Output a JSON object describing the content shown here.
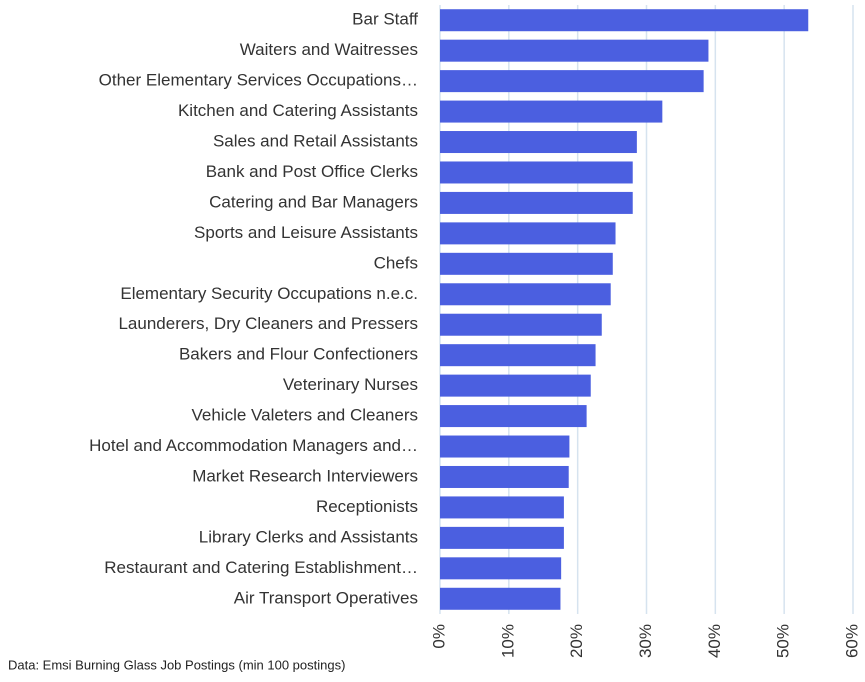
{
  "chart_data": {
    "type": "barh",
    "note": "Data: Emsi Burning Glass Job Postings (min 100 postings)",
    "categories": [
      "Bar Staff",
      "Waiters and Waitresses",
      "Other Elementary Services Occupations…",
      "Kitchen and Catering Assistants",
      "Sales and Retail Assistants",
      "Bank and Post Office Clerks",
      "Catering and Bar Managers",
      "Sports and Leisure Assistants",
      "Chefs",
      "Elementary Security Occupations n.e.c.",
      "Launderers, Dry Cleaners and Pressers",
      "Bakers and Flour Confectioners",
      "Veterinary Nurses",
      "Vehicle Valeters and Cleaners",
      "Hotel and Accommodation Managers and…",
      "Market Research Interviewers",
      "Receptionists",
      "Library Clerks and Assistants",
      "Restaurant and Catering Establishment…",
      "Air Transport Operatives"
    ],
    "values": [
      53.5,
      39.0,
      38.3,
      32.3,
      28.6,
      28.0,
      28.0,
      25.5,
      25.1,
      24.8,
      23.5,
      22.6,
      21.9,
      21.3,
      18.8,
      18.7,
      18.0,
      18.0,
      17.6,
      17.5
    ],
    "color": "#4b5fe0",
    "xlim": [
      0,
      60
    ],
    "xticks": [
      {
        "value": 0,
        "label": "0%"
      },
      {
        "value": 10,
        "label": "10%"
      },
      {
        "value": 20,
        "label": "20%"
      },
      {
        "value": 30,
        "label": "30%"
      },
      {
        "value": 40,
        "label": "40%"
      },
      {
        "value": 50,
        "label": "50%"
      },
      {
        "value": 60,
        "label": "60%"
      }
    ],
    "grid": true,
    "grid_color": "#d6e3ef"
  }
}
